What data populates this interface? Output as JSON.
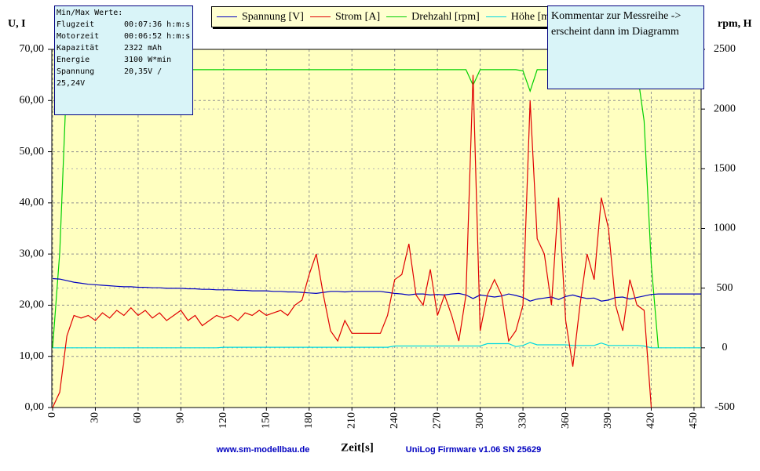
{
  "chart_data": {
    "type": "line",
    "y_label": "U, I",
    "y2_label": "rpm, H",
    "x_label": "Zeit[s]",
    "footer_left": "www.sm-modellbau.de",
    "footer_right": "UniLog Firmware v1.06 SN 25629",
    "legend": "top",
    "grid": true,
    "xlim": [
      0,
      455
    ],
    "xticks": [
      0,
      30,
      60,
      90,
      120,
      150,
      180,
      210,
      240,
      270,
      300,
      330,
      360,
      390,
      420,
      450
    ],
    "ylim": [
      0,
      70
    ],
    "yticks": [
      {
        "value": 0,
        "label": "0,00"
      },
      {
        "value": 10,
        "label": "10,00"
      },
      {
        "value": 20,
        "label": "20,00"
      },
      {
        "value": 30,
        "label": "30,00"
      },
      {
        "value": 40,
        "label": "40,00"
      },
      {
        "value": 50,
        "label": "50,00"
      },
      {
        "value": 60,
        "label": "60,00"
      },
      {
        "value": 70,
        "label": "70,00"
      }
    ],
    "y2lim": [
      -500,
      2500
    ],
    "y2ticks": [
      -500,
      0,
      500,
      1000,
      1500,
      2000,
      2500
    ],
    "x": [
      0,
      5,
      10,
      15,
      20,
      25,
      30,
      35,
      40,
      45,
      50,
      55,
      60,
      65,
      70,
      75,
      80,
      85,
      90,
      95,
      100,
      105,
      110,
      115,
      120,
      125,
      130,
      135,
      140,
      145,
      150,
      155,
      160,
      165,
      170,
      175,
      180,
      185,
      190,
      195,
      200,
      205,
      210,
      215,
      220,
      225,
      230,
      235,
      240,
      245,
      250,
      255,
      260,
      265,
      270,
      275,
      280,
      285,
      290,
      295,
      300,
      305,
      310,
      315,
      320,
      325,
      330,
      335,
      340,
      345,
      350,
      355,
      360,
      365,
      370,
      375,
      380,
      385,
      390,
      395,
      400,
      405,
      410,
      415,
      420,
      425,
      430,
      435,
      440,
      445,
      450,
      455
    ],
    "series": [
      {
        "name": "Spannung [V]",
        "color": "#0000c0",
        "axis": "y",
        "values": [
          25.2,
          25.1,
          24.8,
          24.5,
          24.3,
          24.1,
          24.0,
          23.9,
          23.8,
          23.7,
          23.6,
          23.6,
          23.5,
          23.5,
          23.4,
          23.4,
          23.3,
          23.3,
          23.3,
          23.2,
          23.2,
          23.1,
          23.1,
          23.0,
          23.0,
          23.0,
          22.9,
          22.9,
          22.8,
          22.8,
          22.8,
          22.7,
          22.7,
          22.6,
          22.6,
          22.5,
          22.4,
          22.3,
          22.5,
          22.7,
          22.7,
          22.6,
          22.7,
          22.7,
          22.7,
          22.7,
          22.7,
          22.5,
          22.3,
          22.2,
          22.0,
          22.2,
          22.2,
          22.0,
          22.1,
          22.0,
          22.2,
          22.3,
          22.0,
          21.3,
          22.0,
          21.8,
          21.6,
          21.8,
          22.2,
          21.9,
          21.5,
          20.8,
          21.2,
          21.4,
          21.6,
          21.1,
          21.7,
          22.0,
          21.6,
          21.3,
          21.4,
          20.8,
          21.0,
          21.5,
          21.6,
          21.2,
          21.5,
          21.8,
          22.1,
          22.2,
          22.2,
          22.2,
          22.2,
          22.2,
          22.2,
          22.2
        ]
      },
      {
        "name": "Strom [A]",
        "color": "#e00000",
        "axis": "y",
        "values": [
          0,
          3,
          14,
          18,
          17.5,
          18,
          17,
          18.5,
          17.5,
          19,
          18,
          19.5,
          18,
          19,
          17.5,
          18.5,
          17,
          18,
          19,
          17,
          18,
          16,
          17,
          18,
          17.5,
          18,
          17,
          18.5,
          18,
          19,
          18,
          18.5,
          19,
          18,
          20,
          21,
          26,
          30,
          22,
          15,
          13,
          17,
          14.5,
          14.5,
          14.5,
          14.5,
          14.5,
          18,
          25,
          26,
          32,
          22,
          20,
          27,
          18,
          22,
          18,
          13,
          22,
          65,
          15,
          22,
          25,
          22,
          13,
          15,
          20,
          60,
          33,
          30,
          20,
          41,
          17,
          8,
          20,
          30,
          25,
          41,
          35,
          20,
          15,
          25,
          20,
          19,
          0,
          null,
          null,
          null,
          null,
          null,
          null,
          null
        ]
      },
      {
        "name": "Drehzahl [rpm]",
        "color": "#00d000",
        "axis": "y2",
        "values": [
          0,
          800,
          2300,
          2330,
          2330,
          2330,
          2330,
          2330,
          2330,
          2330,
          2330,
          2330,
          2330,
          2330,
          2330,
          2330,
          2330,
          2330,
          2330,
          2330,
          2330,
          2330,
          2330,
          2330,
          2330,
          2330,
          2330,
          2330,
          2330,
          2330,
          2330,
          2330,
          2330,
          2330,
          2330,
          2330,
          2330,
          2330,
          2330,
          2330,
          2330,
          2330,
          2330,
          2330,
          2330,
          2330,
          2330,
          2330,
          2330,
          2330,
          2330,
          2330,
          2330,
          2330,
          2330,
          2330,
          2330,
          2330,
          2330,
          2200,
          2330,
          2330,
          2330,
          2330,
          2330,
          2330,
          2320,
          2150,
          2330,
          2330,
          2330,
          2330,
          2330,
          2330,
          2330,
          2330,
          2330,
          2330,
          2330,
          2330,
          2330,
          2330,
          2330,
          1900,
          700,
          0,
          null,
          null,
          null,
          null,
          null,
          null
        ]
      },
      {
        "name": "Höhe [m]",
        "color": "#00d8e0",
        "axis": "y2",
        "values": [
          0,
          0,
          0,
          0,
          0,
          0,
          0,
          0,
          0,
          0,
          0,
          0,
          0,
          0,
          0,
          0,
          0,
          0,
          0,
          0,
          0,
          0,
          0,
          0,
          5,
          5,
          5,
          5,
          5,
          5,
          5,
          5,
          5,
          5,
          5,
          5,
          5,
          5,
          5,
          5,
          5,
          5,
          5,
          5,
          5,
          5,
          5,
          5,
          15,
          15,
          15,
          15,
          15,
          15,
          15,
          15,
          15,
          15,
          15,
          15,
          15,
          35,
          35,
          35,
          35,
          10,
          20,
          45,
          25,
          25,
          25,
          25,
          25,
          20,
          20,
          20,
          20,
          40,
          20,
          20,
          20,
          20,
          20,
          15,
          0,
          0,
          0,
          0,
          0,
          0,
          0,
          0
        ]
      }
    ]
  },
  "info_box": {
    "title": "Min/Max Werte:",
    "rows": [
      {
        "label": "Flugzeit",
        "value": "00:07:36 h:m:s"
      },
      {
        "label": "Motorzeit",
        "value": "00:06:52 h:m:s"
      },
      {
        "label": "Kapazität",
        "value": "2322 mAh"
      },
      {
        "label": "Energie",
        "value": "3100 W*min"
      },
      {
        "label": "Spannung",
        "value": "20,35V / 25,24V"
      }
    ]
  },
  "comment": "Kommentar zur Messreihe -> erscheint dann im Diagramm"
}
